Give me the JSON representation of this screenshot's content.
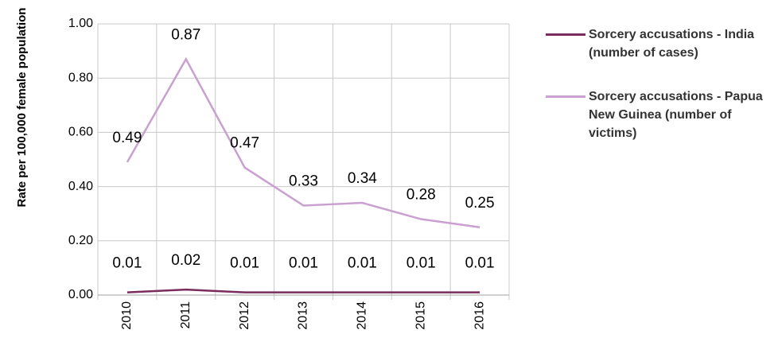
{
  "chart_data": {
    "type": "line",
    "y_label": "Rate per 100,000 female population",
    "categories": [
      "2010",
      "2011",
      "2012",
      "2013",
      "2014",
      "2015",
      "2016"
    ],
    "series": [
      {
        "name": "Sorcery accusations - India (number of cases)",
        "color": "#7b2c5e",
        "values": [
          0.01,
          0.02,
          0.01,
          0.01,
          0.01,
          0.01,
          0.01
        ]
      },
      {
        "name": "Sorcery accusations - Papua New Guinea (number of victims)",
        "color": "#c9a0d0",
        "values": [
          0.49,
          0.87,
          0.47,
          0.33,
          0.34,
          0.28,
          0.25
        ]
      }
    ],
    "ylim": [
      0,
      1
    ],
    "yticks": [
      {
        "value": 0,
        "label": "0.00"
      },
      {
        "value": 0.2,
        "label": "0.20"
      },
      {
        "value": 0.4,
        "label": "0.40"
      },
      {
        "value": 0.6,
        "label": "0.60"
      },
      {
        "value": 0.8,
        "label": "0.80"
      },
      {
        "value": 1,
        "label": "1.00"
      }
    ],
    "grid": true
  }
}
